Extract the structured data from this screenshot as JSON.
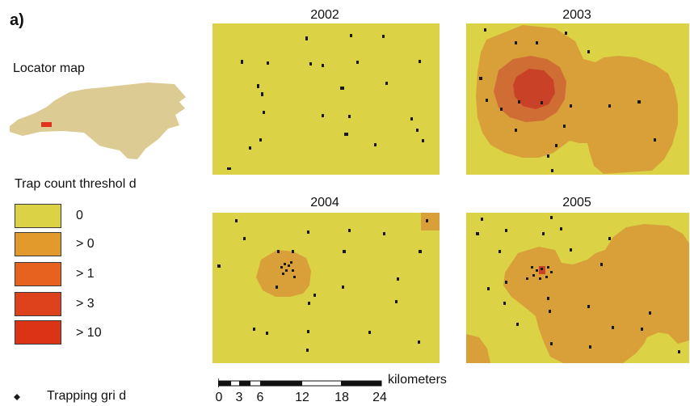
{
  "panel_label": "a)",
  "locator": {
    "title": "Locator map",
    "land_color": "#dccb93",
    "study_area_color": "#e0321e"
  },
  "legend": {
    "title": "Trap count threshol d",
    "classes": [
      {
        "label": "0",
        "color": "#dbd245"
      },
      {
        "label": "> 0",
        "color": "#e39a2c"
      },
      {
        "label": "> 1",
        "color": "#e6621e"
      },
      {
        "label": "> 3",
        "color": "#dd421c"
      },
      {
        "label": "> 10",
        "color": "#dc3216"
      }
    ],
    "trap_label": "Trapping gri d"
  },
  "maps": [
    {
      "year": "2002"
    },
    {
      "year": "2003"
    },
    {
      "year": "2004"
    },
    {
      "year": "2005"
    }
  ],
  "scale": {
    "unit": "kilometers",
    "ticks": [
      "0",
      "3",
      "6",
      "12",
      "18",
      "24"
    ]
  },
  "colors": {
    "background_zone": "#dbd245",
    "low_zone": "#d9a03a",
    "mid_zone": "#cf6d35",
    "high_zone": "#c94127",
    "trap_point": "#1a1a1a"
  }
}
